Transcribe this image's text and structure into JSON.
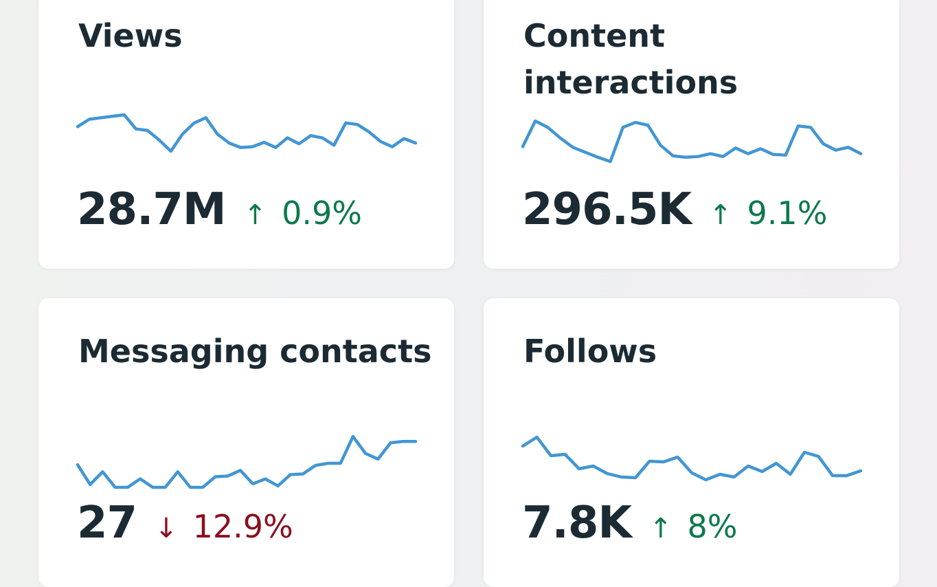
{
  "cards": [
    {
      "title": "Views",
      "value": "28.7M",
      "direction": "up",
      "arrow": "↑",
      "change": "0.9%"
    },
    {
      "title": "Content interactions",
      "value": "296.5K",
      "direction": "up",
      "arrow": "↑",
      "change": "9.1%"
    },
    {
      "title": "Messaging contacts",
      "value": "27",
      "direction": "down",
      "arrow": "↓",
      "change": "12.9%"
    },
    {
      "title": "Follows",
      "value": "7.8K",
      "direction": "up",
      "arrow": "↑",
      "change": "8%"
    }
  ],
  "colors": {
    "line": "#4296d3",
    "up": "#0b7a4b",
    "down": "#8a1020",
    "text": "#1c2b33"
  },
  "chart_data": [
    {
      "type": "line",
      "title": "Views",
      "values": [
        35,
        45,
        47,
        49,
        51,
        32,
        30,
        17,
        2,
        25,
        40,
        47,
        25,
        13,
        7,
        8,
        14,
        7,
        20,
        12,
        23,
        20,
        10,
        40,
        38,
        28,
        15,
        8,
        19,
        13
      ]
    },
    {
      "type": "line",
      "title": "Content interactions",
      "values": [
        23,
        59,
        50,
        35,
        22,
        15,
        8,
        2,
        50,
        57,
        53,
        25,
        10,
        8,
        9,
        13,
        9,
        21,
        13,
        20,
        12,
        11,
        52,
        50,
        27,
        18,
        22,
        13
      ]
    },
    {
      "type": "line",
      "title": "Messaging contacts",
      "values": [
        34,
        6,
        24,
        2,
        2,
        14,
        2,
        2,
        24,
        2,
        2,
        17,
        18,
        26,
        7,
        14,
        4,
        20,
        21,
        33,
        36,
        36,
        74,
        50,
        42,
        65,
        67,
        67
      ]
    },
    {
      "type": "line",
      "title": "Follows",
      "values": [
        51,
        64,
        37,
        39,
        18,
        22,
        11,
        6,
        5,
        29,
        28,
        35,
        12,
        2,
        10,
        6,
        22,
        14,
        26,
        10,
        42,
        36,
        8,
        8,
        15
      ]
    }
  ]
}
